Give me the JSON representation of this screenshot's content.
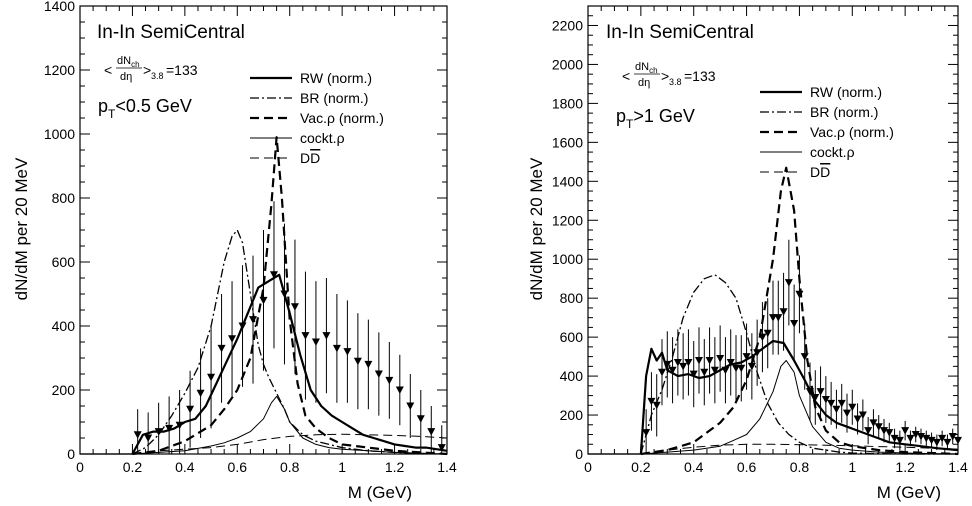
{
  "chart_data": [
    {
      "type": "line",
      "title": "In-In SemiCentral",
      "multiplicity": {
        "num": "dN",
        "num_sub": "ch",
        "den": "dη",
        "sub": "3.8",
        "value": "=133"
      },
      "cut": {
        "p": "p",
        "sub": "T",
        "rest": "<0.5 GeV"
      },
      "xlabel": "M (GeV)",
      "ylabel": "dN/dM per 20 MeV",
      "xlim": [
        0,
        1.4
      ],
      "ylim": [
        0,
        1400
      ],
      "xticks": [
        "0",
        "0.2",
        "0.4",
        "0.6",
        "0.8",
        "1",
        "1.2",
        "1.4"
      ],
      "yticks": [
        "0",
        "200",
        "400",
        "600",
        "800",
        "1000",
        "1200",
        "1400"
      ],
      "legend_position": "top-right",
      "legend": [
        {
          "label": "RW (norm.)",
          "style": "thick-solid"
        },
        {
          "label": "BR (norm.)",
          "style": "dash-dot"
        },
        {
          "label": "Vac.ρ (norm.)",
          "style": "thick-dash"
        },
        {
          "label": "cockt.ρ",
          "style": "thin-solid"
        },
        {
          "label": "D",
          "overline": "D",
          "style": "thin-dash"
        }
      ],
      "series": [
        {
          "name": "RW (norm.)",
          "style": "thick-solid",
          "x": [
            0.2,
            0.24,
            0.28,
            0.32,
            0.36,
            0.4,
            0.44,
            0.48,
            0.52,
            0.56,
            0.6,
            0.64,
            0.68,
            0.72,
            0.76,
            0.8,
            0.84,
            0.88,
            0.92,
            0.96,
            1.0,
            1.04,
            1.08,
            1.12,
            1.16,
            1.2,
            1.24,
            1.28,
            1.32,
            1.36,
            1.4
          ],
          "y": [
            0,
            60,
            70,
            70,
            80,
            100,
            110,
            150,
            220,
            290,
            360,
            440,
            520,
            540,
            560,
            440,
            310,
            200,
            150,
            120,
            100,
            80,
            60,
            50,
            40,
            30,
            25,
            20,
            20,
            15,
            10
          ]
        },
        {
          "name": "BR (norm.)",
          "style": "dash-dot",
          "x": [
            0.2,
            0.25,
            0.3,
            0.35,
            0.4,
            0.45,
            0.5,
            0.55,
            0.58,
            0.6,
            0.62,
            0.65,
            0.68,
            0.7,
            0.72,
            0.75,
            0.78,
            0.8,
            0.85,
            0.9,
            0.95,
            1.0,
            1.1,
            1.2,
            1.3,
            1.4
          ],
          "y": [
            0,
            20,
            60,
            120,
            190,
            270,
            400,
            600,
            680,
            700,
            660,
            500,
            340,
            280,
            240,
            190,
            140,
            100,
            60,
            40,
            30,
            20,
            10,
            5,
            2,
            0
          ]
        },
        {
          "name": "Vac.ρ (norm.)",
          "style": "thick-dash",
          "x": [
            0.2,
            0.3,
            0.4,
            0.5,
            0.55,
            0.6,
            0.65,
            0.7,
            0.73,
            0.75,
            0.77,
            0.8,
            0.83,
            0.86,
            0.9,
            0.95,
            1.0,
            1.1,
            1.2,
            1.3,
            1.4
          ],
          "y": [
            0,
            10,
            40,
            90,
            140,
            200,
            300,
            520,
            780,
            990,
            800,
            420,
            220,
            120,
            80,
            50,
            30,
            20,
            10,
            5,
            0
          ]
        },
        {
          "name": "cockt.ρ",
          "style": "thin-solid",
          "x": [
            0.2,
            0.3,
            0.4,
            0.5,
            0.55,
            0.6,
            0.65,
            0.7,
            0.73,
            0.75,
            0.78,
            0.8,
            0.85,
            0.9,
            0.95,
            1.0,
            1.1,
            1.2,
            1.3,
            1.4
          ],
          "y": [
            0,
            5,
            10,
            25,
            35,
            50,
            70,
            110,
            160,
            180,
            140,
            100,
            50,
            30,
            20,
            15,
            10,
            5,
            2,
            0
          ]
        },
        {
          "name": "DD̄",
          "style": "thin-dash",
          "x": [
            0.2,
            0.3,
            0.4,
            0.5,
            0.6,
            0.7,
            0.8,
            0.9,
            1.0,
            1.1,
            1.2,
            1.3,
            1.4
          ],
          "y": [
            0,
            10,
            15,
            20,
            30,
            45,
            55,
            60,
            62,
            60,
            58,
            55,
            50
          ]
        }
      ],
      "data_points": {
        "marker": "inverted-triangle",
        "x": [
          0.22,
          0.26,
          0.3,
          0.34,
          0.38,
          0.42,
          0.46,
          0.5,
          0.54,
          0.58,
          0.62,
          0.66,
          0.7,
          0.74,
          0.78,
          0.82,
          0.86,
          0.9,
          0.94,
          0.98,
          1.02,
          1.06,
          1.1,
          1.14,
          1.18,
          1.22,
          1.26,
          1.3,
          1.34,
          1.38
        ],
        "y": [
          60,
          50,
          70,
          80,
          90,
          140,
          190,
          240,
          330,
          360,
          400,
          420,
          480,
          560,
          500,
          460,
          370,
          350,
          370,
          330,
          320,
          290,
          280,
          250,
          230,
          200,
          150,
          110,
          70,
          20
        ],
        "err": [
          80,
          80,
          90,
          100,
          110,
          120,
          140,
          160,
          170,
          180,
          190,
          200,
          220,
          230,
          220,
          210,
          200,
          190,
          180,
          170,
          160,
          150,
          140,
          130,
          120,
          110,
          100,
          90,
          80,
          70
        ]
      }
    },
    {
      "type": "line",
      "title": "In-In SemiCentral",
      "multiplicity": {
        "num": "dN",
        "num_sub": "ch",
        "den": "dη",
        "sub": "3.8",
        "value": "=133"
      },
      "cut": {
        "p": "p",
        "sub": "T",
        "rest": ">1 GeV"
      },
      "xlabel": "M (GeV)",
      "ylabel": "dN/dM per 20 MeV",
      "xlim": [
        0,
        1.4
      ],
      "ylim": [
        0,
        2300
      ],
      "xticks": [
        "0",
        "0.2",
        "0.4",
        "0.6",
        "0.8",
        "1",
        "1.2",
        "1.4"
      ],
      "yticks": [
        "0",
        "200",
        "400",
        "600",
        "800",
        "1000",
        "1200",
        "1400",
        "1600",
        "1800",
        "2000",
        "2200"
      ],
      "legend_position": "top-right",
      "legend": [
        {
          "label": "RW (norm.)",
          "style": "thick-solid"
        },
        {
          "label": "BR (norm.)",
          "style": "dash-dot"
        },
        {
          "label": "Vac.ρ (norm.)",
          "style": "thick-dash"
        },
        {
          "label": "cockt.ρ",
          "style": "thin-solid"
        },
        {
          "label": "D",
          "overline": "D",
          "style": "thin-dash"
        }
      ],
      "series": [
        {
          "name": "RW (norm.)",
          "style": "thick-solid",
          "x": [
            0.2,
            0.22,
            0.24,
            0.26,
            0.28,
            0.3,
            0.34,
            0.38,
            0.42,
            0.46,
            0.5,
            0.54,
            0.58,
            0.62,
            0.66,
            0.7,
            0.74,
            0.78,
            0.82,
            0.86,
            0.9,
            0.94,
            0.98,
            1.02,
            1.06,
            1.1,
            1.14,
            1.2,
            1.26,
            1.32,
            1.4
          ],
          "y": [
            0,
            400,
            540,
            480,
            520,
            430,
            400,
            410,
            390,
            400,
            430,
            460,
            470,
            500,
            540,
            580,
            570,
            480,
            380,
            270,
            200,
            160,
            140,
            120,
            100,
            80,
            60,
            50,
            40,
            30,
            20
          ]
        },
        {
          "name": "BR (norm.)",
          "style": "dash-dot",
          "x": [
            0.2,
            0.24,
            0.28,
            0.32,
            0.36,
            0.4,
            0.44,
            0.48,
            0.52,
            0.56,
            0.6,
            0.64,
            0.68,
            0.72,
            0.76,
            0.8,
            0.85,
            0.9,
            0.95,
            1.0,
            1.1,
            1.2,
            1.3,
            1.4
          ],
          "y": [
            0,
            200,
            330,
            500,
            700,
            830,
            900,
            920,
            880,
            800,
            620,
            420,
            260,
            160,
            100,
            60,
            30,
            20,
            10,
            5,
            2,
            0,
            0,
            0
          ]
        },
        {
          "name": "Vac.ρ (norm.)",
          "style": "thick-dash",
          "x": [
            0.2,
            0.3,
            0.4,
            0.5,
            0.55,
            0.6,
            0.65,
            0.7,
            0.73,
            0.75,
            0.78,
            0.8,
            0.83,
            0.86,
            0.9,
            0.95,
            1.0,
            1.1,
            1.2,
            1.3,
            1.4
          ],
          "y": [
            0,
            20,
            60,
            160,
            240,
            380,
            600,
            1000,
            1350,
            1470,
            1250,
            900,
            480,
            240,
            120,
            60,
            40,
            20,
            10,
            5,
            0
          ]
        },
        {
          "name": "cockt.ρ",
          "style": "thin-solid",
          "x": [
            0.2,
            0.3,
            0.4,
            0.5,
            0.55,
            0.6,
            0.65,
            0.7,
            0.73,
            0.75,
            0.78,
            0.8,
            0.85,
            0.9,
            0.95,
            1.0,
            1.1,
            1.2,
            1.3,
            1.4
          ],
          "y": [
            0,
            10,
            20,
            40,
            70,
            100,
            180,
            320,
            450,
            480,
            420,
            300,
            140,
            60,
            30,
            20,
            10,
            5,
            2,
            0
          ]
        },
        {
          "name": "DD̄",
          "style": "thin-dash",
          "x": [
            0.2,
            0.3,
            0.4,
            0.5,
            0.6,
            0.7,
            0.8,
            0.9,
            1.0,
            1.1,
            1.2,
            1.3,
            1.4
          ],
          "y": [
            0,
            20,
            35,
            45,
            50,
            50,
            48,
            45,
            42,
            38,
            35,
            30,
            25
          ]
        }
      ],
      "data_points": {
        "marker": "inverted-triangle",
        "x": [
          0.22,
          0.24,
          0.26,
          0.28,
          0.3,
          0.32,
          0.34,
          0.36,
          0.38,
          0.4,
          0.42,
          0.44,
          0.46,
          0.48,
          0.5,
          0.52,
          0.54,
          0.56,
          0.58,
          0.6,
          0.62,
          0.64,
          0.66,
          0.68,
          0.7,
          0.72,
          0.74,
          0.76,
          0.78,
          0.8,
          0.82,
          0.84,
          0.86,
          0.88,
          0.9,
          0.92,
          0.94,
          0.96,
          0.98,
          1.0,
          1.02,
          1.04,
          1.06,
          1.08,
          1.1,
          1.12,
          1.14,
          1.16,
          1.18,
          1.2,
          1.22,
          1.24,
          1.26,
          1.28,
          1.3,
          1.32,
          1.34,
          1.36,
          1.38,
          1.4
        ],
        "y": [
          110,
          270,
          250,
          420,
          460,
          430,
          470,
          450,
          470,
          410,
          480,
          420,
          480,
          430,
          490,
          430,
          470,
          440,
          440,
          500,
          450,
          520,
          600,
          620,
          700,
          700,
          730,
          880,
          670,
          820,
          500,
          320,
          290,
          320,
          280,
          260,
          230,
          260,
          210,
          240,
          180,
          200,
          120,
          160,
          140,
          120,
          110,
          80,
          70,
          120,
          80,
          100,
          90,
          80,
          70,
          60,
          80,
          60,
          90,
          70
        ],
        "err": [
          120,
          150,
          160,
          170,
          170,
          170,
          170,
          170,
          170,
          170,
          170,
          170,
          170,
          170,
          170,
          170,
          170,
          170,
          170,
          170,
          170,
          170,
          180,
          180,
          190,
          190,
          200,
          220,
          200,
          200,
          170,
          150,
          140,
          130,
          120,
          110,
          100,
          100,
          100,
          90,
          80,
          80,
          70,
          70,
          60,
          60,
          50,
          50,
          50,
          50,
          40,
          40,
          40,
          40,
          40,
          40,
          40,
          40,
          40,
          40
        ]
      }
    }
  ]
}
